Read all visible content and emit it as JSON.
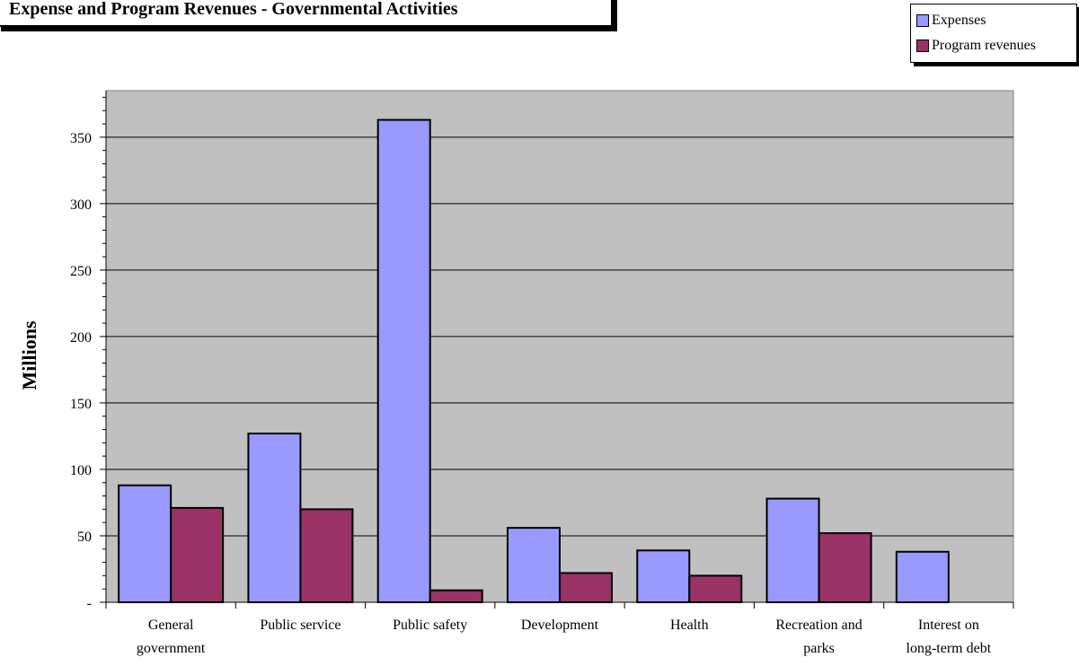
{
  "chart_data": {
    "type": "bar",
    "title": "Expense and Program Revenues - Governmental Activities",
    "ylabel": "Millions",
    "xlabel": "",
    "categories": [
      [
        "General",
        "government"
      ],
      [
        "Public service"
      ],
      [
        "Public safety"
      ],
      [
        "Development"
      ],
      [
        "Health"
      ],
      [
        "Recreation and",
        "parks"
      ],
      [
        "Interest on",
        "long-term debt"
      ]
    ],
    "series": [
      {
        "name": "Expenses",
        "color": "#9999ff",
        "values": [
          88,
          127,
          363,
          56,
          39,
          78,
          38
        ]
      },
      {
        "name": "Program revenues",
        "color": "#993366",
        "values": [
          71,
          70,
          9,
          22,
          20,
          52,
          0
        ]
      }
    ],
    "ylim": [
      0,
      385
    ],
    "yticks": [
      0,
      50,
      100,
      150,
      200,
      250,
      300,
      350
    ],
    "ytick_labels": [
      "-",
      "50",
      "100",
      "150",
      "200",
      "250",
      "300",
      "350"
    ],
    "grid": true,
    "plot_background": "#c0c0c0",
    "legend_position": "top-right"
  }
}
